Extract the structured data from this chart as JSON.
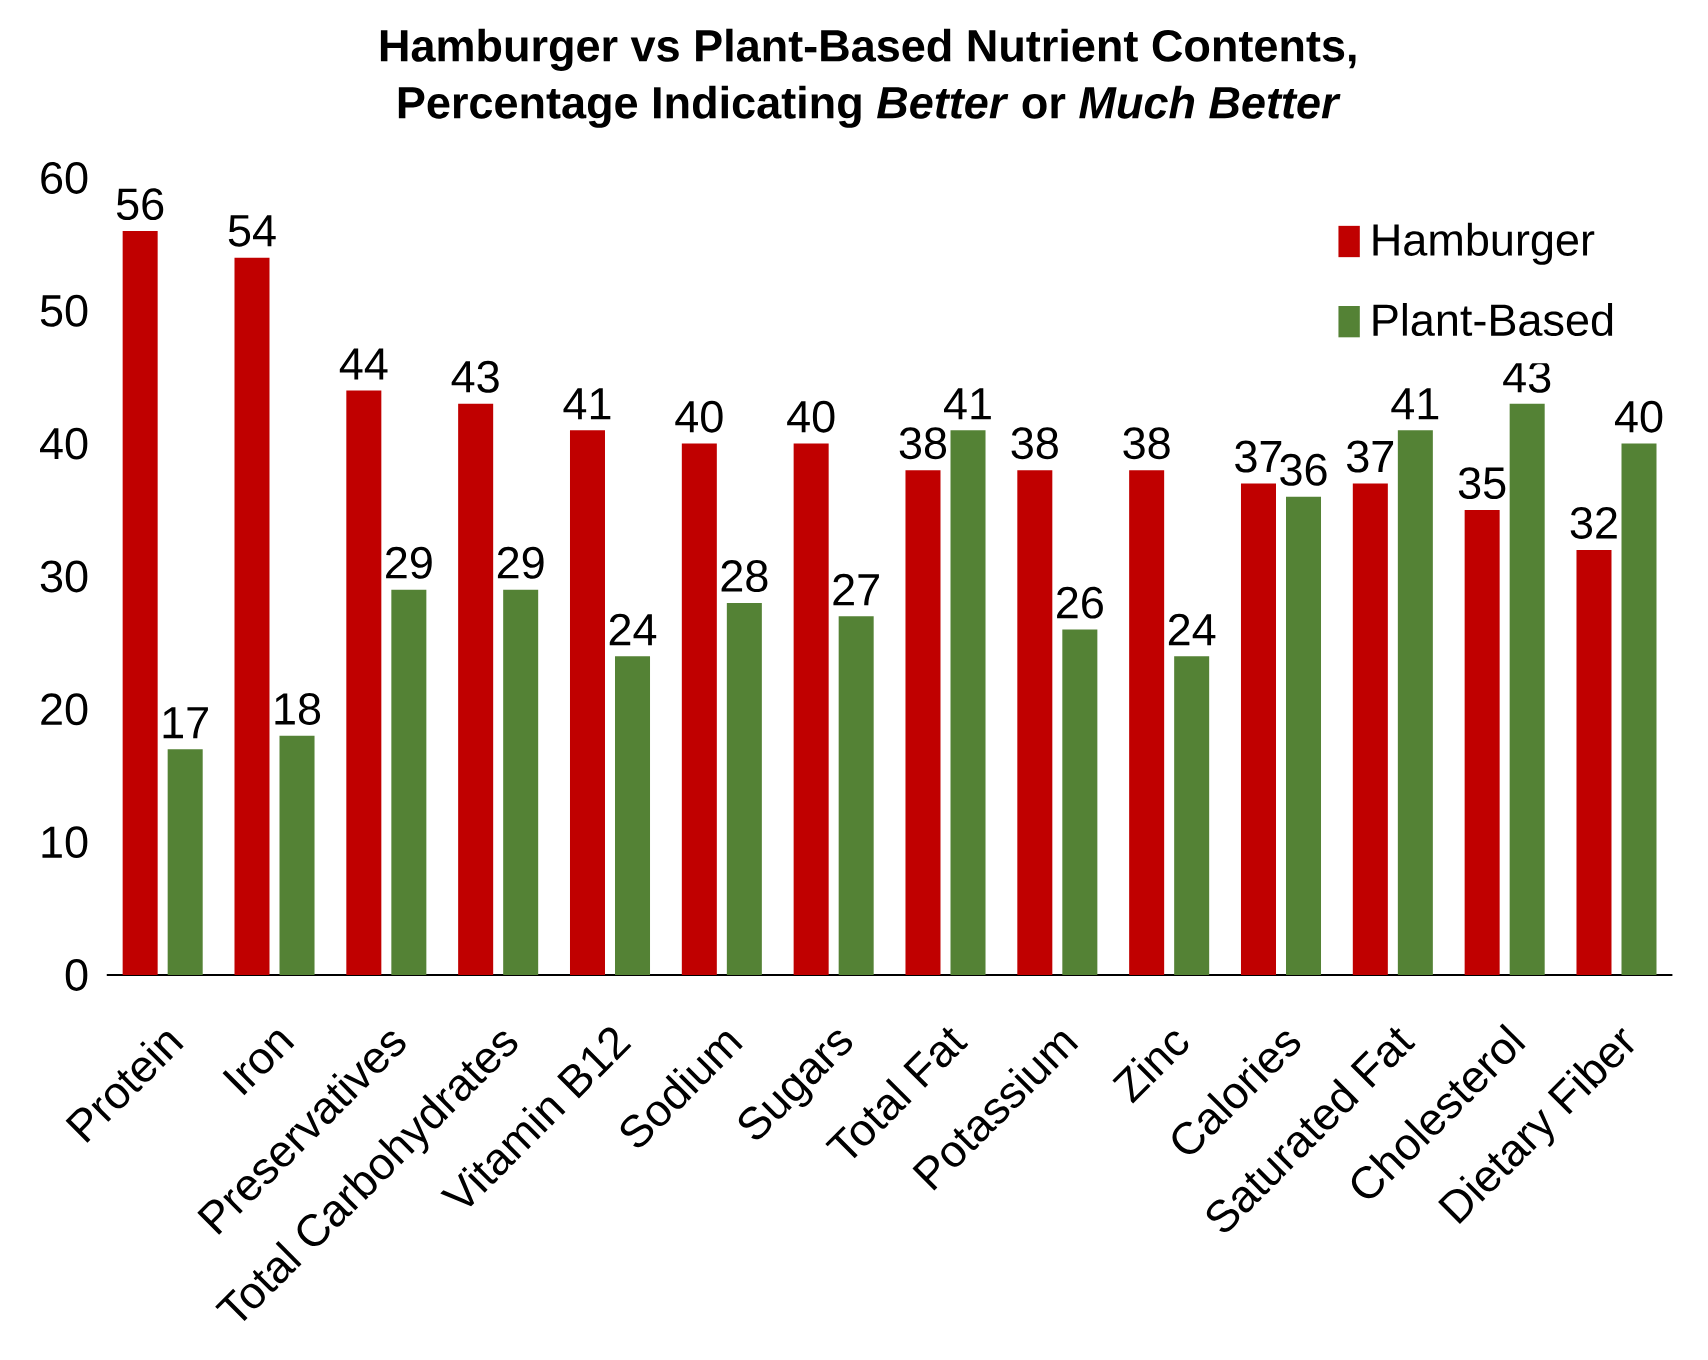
{
  "chart_data": {
    "type": "bar",
    "title": "Hamburger vs Plant-Based Nutrient Contents,",
    "subtitle": "Percentage Indicating *Better* or *Much Better*",
    "categories": [
      "Protein",
      "Iron",
      "Preservatives",
      "Total Carbohydrates",
      "Vitamin B12",
      "Sodium",
      "Sugars",
      "Total Fat",
      "Potassium",
      "Zinc",
      "Calories",
      "Saturated Fat",
      "Cholesterol",
      "Dietary Fiber"
    ],
    "series": [
      {
        "name": "Hamburger",
        "color": "#c00000",
        "values": [
          56,
          54,
          44,
          43,
          41,
          40,
          40,
          38,
          38,
          38,
          37,
          37,
          35,
          32
        ]
      },
      {
        "name": "Plant-Based",
        "color": "#548235",
        "values": [
          17,
          18,
          29,
          29,
          24,
          28,
          27,
          41,
          26,
          24,
          36,
          41,
          43,
          40
        ]
      }
    ],
    "ylim": [
      0,
      60
    ],
    "yticks": [
      0,
      10,
      20,
      30,
      40,
      50,
      60
    ],
    "data_labels": true,
    "legend": "top right",
    "grid": false
  }
}
